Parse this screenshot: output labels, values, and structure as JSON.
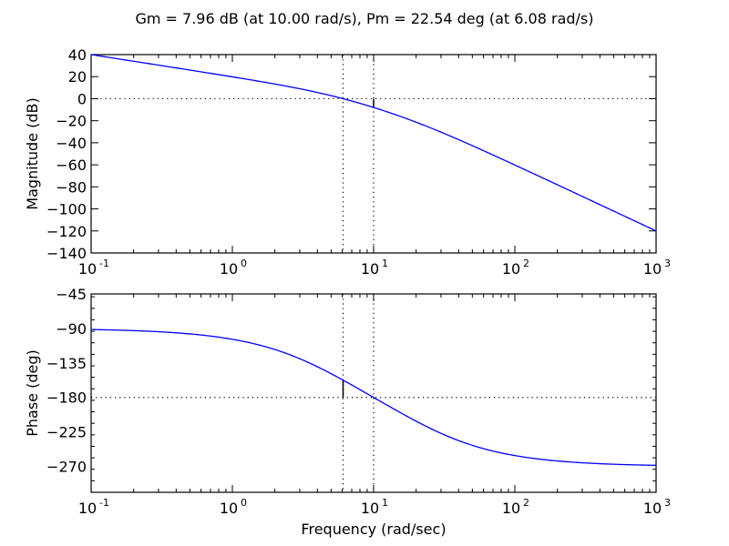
{
  "figure": {
    "title": "Gm = 7.96 dB (at 10.00 rad/s), Pm = 22.54 deg (at 6.08 rad/s)",
    "xlabel": "Frequency (rad/sec)",
    "line_color": "#0000ff"
  },
  "chart_data": [
    {
      "type": "line",
      "title": "Gm = 7.96 dB (at 10.00 rad/s), Pm = 22.54 deg (at 6.08 rad/s)",
      "xlabel": "",
      "ylabel": "Magnitude (dB)",
      "xscale": "log",
      "xlim": [
        0.1,
        1000
      ],
      "ylim": [
        -140,
        40
      ],
      "xticks": [
        "10^-1",
        "10^0",
        "10^1",
        "10^2",
        "10^3"
      ],
      "yticks": [
        40,
        20,
        0,
        -20,
        -40,
        -60,
        -80,
        -100,
        -120,
        -140
      ],
      "grid": false,
      "x": [
        0.1,
        0.2,
        0.5,
        1,
        2,
        3,
        5,
        6.08,
        8,
        10,
        15,
        20,
        30,
        50,
        100,
        200,
        500,
        1000
      ],
      "series": [
        {
          "name": "Magnitude",
          "values": [
            40.0,
            33.9,
            25.9,
            19.8,
            13.3,
            9.1,
            2.9,
            0.0,
            -4.6,
            -7.96,
            -15.0,
            -21.0,
            -29.3,
            -40.8,
            -57.6,
            -75.2,
            -98.9,
            -117.0
          ]
        }
      ],
      "annotations": [
        {
          "type": "hline",
          "y": 0,
          "style": "dotted"
        },
        {
          "type": "vline",
          "x": 6.08,
          "style": "dotted",
          "label": "Pm frequency"
        },
        {
          "type": "vline",
          "x": 10.0,
          "style": "dotted",
          "label": "Gm frequency"
        },
        {
          "type": "segment",
          "x": 10.0,
          "y0": 0,
          "y1": -7.96,
          "label": "Gain margin 7.96 dB"
        }
      ]
    },
    {
      "type": "line",
      "title": "",
      "xlabel": "Frequency (rad/sec)",
      "ylabel": "Phase (deg)",
      "xscale": "log",
      "xlim": [
        0.1,
        1000
      ],
      "ylim": [
        -303.75,
        -45
      ],
      "xticks": [
        "10^-1",
        "10^0",
        "10^1",
        "10^2",
        "10^3"
      ],
      "yticks": [
        -45,
        -90,
        -135,
        -180,
        -225,
        -270
      ],
      "grid": false,
      "x": [
        0.1,
        0.2,
        0.5,
        1,
        2,
        3,
        5,
        6.08,
        8,
        10,
        15,
        20,
        30,
        50,
        100,
        200,
        500,
        1000
      ],
      "series": [
        {
          "name": "Phase",
          "values": [
            -91.4,
            -92.9,
            -97.1,
            -104.2,
            -117.5,
            -129.5,
            -149.0,
            -157.5,
            -170.8,
            -180.0,
            -199.0,
            -211.0,
            -227.0,
            -242.2,
            -256.1,
            -263.0,
            -267.6,
            -268.9
          ]
        }
      ],
      "annotations": [
        {
          "type": "hline",
          "y": -180,
          "style": "dotted"
        },
        {
          "type": "vline",
          "x": 6.08,
          "style": "dotted"
        },
        {
          "type": "vline",
          "x": 10.0,
          "style": "dotted"
        },
        {
          "type": "segment",
          "x": 6.08,
          "y0": -180,
          "y1": -157.46,
          "label": "Phase margin 22.54 deg"
        }
      ]
    }
  ],
  "margins": {
    "gm_db": 7.96,
    "gm_freq": 10.0,
    "pm_deg": 22.54,
    "pm_freq": 6.08
  }
}
